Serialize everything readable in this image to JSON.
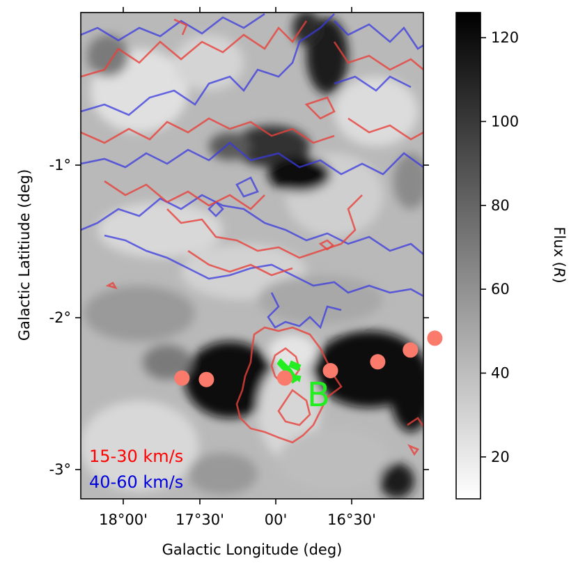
{
  "chart_data": {
    "type": "heatmap",
    "xlabel": "Galactic Longitude (deg)",
    "ylabel": "Galactic Latitiude (deg)",
    "x_direction": "decreasing to the right",
    "xlim_deg": [
      18.25,
      16.15
    ],
    "ylim_deg": [
      -3.2,
      0.1
    ],
    "x_tick_values_deg": [
      18.0,
      17.5,
      17.0,
      16.5
    ],
    "x_tick_labels": [
      "18°00'",
      "17°30'",
      "00'",
      "16°30'"
    ],
    "y_tick_values_deg": [
      -1,
      -2,
      -3
    ],
    "y_tick_labels": [
      "-1°",
      "-2°",
      "-3°"
    ],
    "colormap": "gray_r",
    "colorbar": {
      "label": "Flux (R)",
      "range": [
        10,
        126
      ],
      "ticks": [
        20,
        40,
        60,
        80,
        100,
        120
      ],
      "tick_labels": [
        "20",
        "40",
        "60",
        "80",
        "100",
        "120"
      ]
    },
    "legend": {
      "placement": "bottom-left",
      "items": [
        {
          "text": "15-30 km/s",
          "color": "#ff0000"
        },
        {
          "text": "40-60 km/s",
          "color": "#0000dd"
        }
      ]
    },
    "contour_colors": {
      "red": "#e8413b",
      "blue": "#3a3ae0"
    },
    "markers": {
      "color": "#fa7a6b",
      "points": [
        {
          "l": 17.63,
          "b": -2.38
        },
        {
          "l": 17.48,
          "b": -2.39
        },
        {
          "l": 17.0,
          "b": -2.38
        },
        {
          "l": 16.72,
          "b": -2.33
        },
        {
          "l": 16.43,
          "b": -2.27
        },
        {
          "l": 16.23,
          "b": -2.19
        },
        {
          "l": 16.08,
          "b": -2.11
        }
      ]
    },
    "label_B": {
      "text": "B",
      "color": "#22ee22",
      "l": 16.8,
      "b": -2.5
    }
  }
}
